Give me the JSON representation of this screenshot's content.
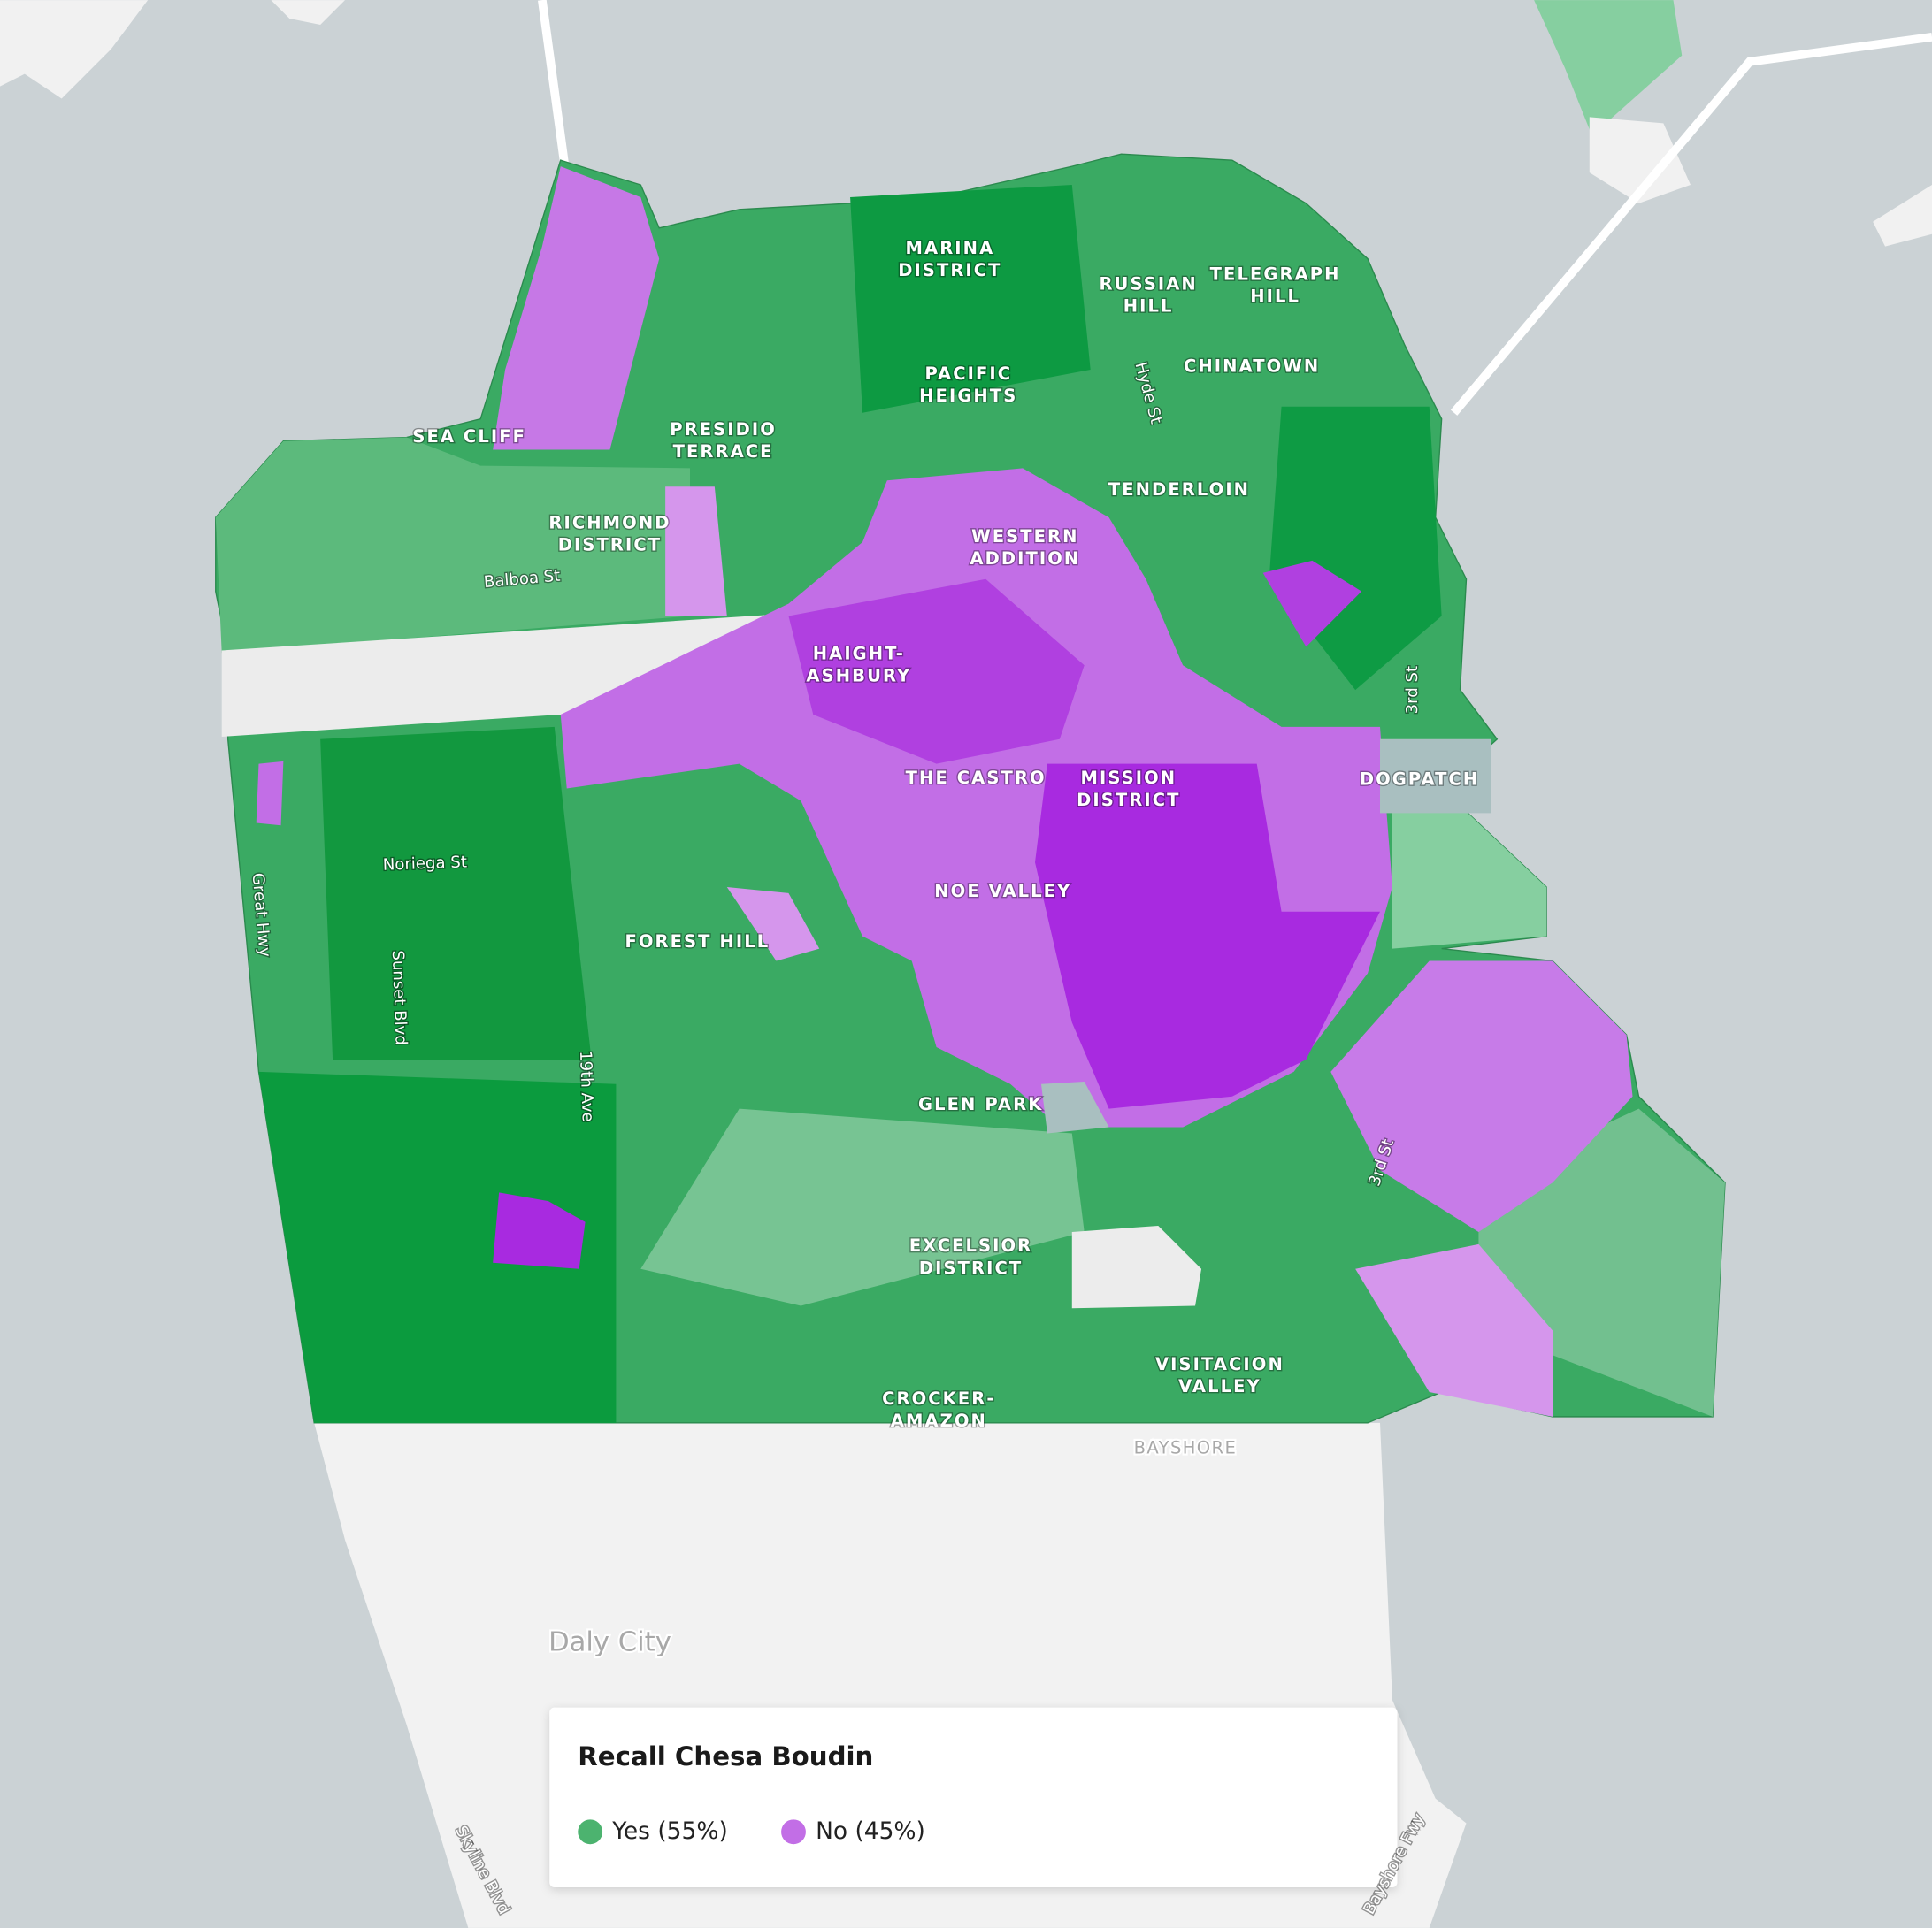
{
  "legend": {
    "title": "Recall Chesa Boudin",
    "items": [
      {
        "label": "Yes (55%)",
        "color": "#4cb36f"
      },
      {
        "label": "No (45%)",
        "color": "#c26ee6"
      }
    ]
  },
  "neighborhoods": [
    [
      "MARINA",
      "DISTRICT"
    ],
    [
      "RUSSIAN",
      "HILL"
    ],
    [
      "TELEGRAPH",
      "HILL"
    ],
    [
      "CHINATOWN"
    ],
    [
      "PACIFIC",
      "HEIGHTS"
    ],
    [
      "SEA CLIFF"
    ],
    [
      "PRESIDIO",
      "TERRACE"
    ],
    [
      "RICHMOND",
      "DISTRICT"
    ],
    [
      "TENDERLOIN"
    ],
    [
      "WESTERN",
      "ADDITION"
    ],
    [
      "HAIGHT-",
      "ASHBURY"
    ],
    [
      "THE CASTRO"
    ],
    [
      "MISSION",
      "DISTRICT"
    ],
    [
      "DOGPATCH"
    ],
    [
      "NOE VALLEY"
    ],
    [
      "FOREST HILL"
    ],
    [
      "GLEN PARK"
    ],
    [
      "EXCELSIOR",
      "DISTRICT"
    ],
    [
      "VISITACION",
      "VALLEY"
    ],
    [
      "CROCKER-",
      "AMAZON"
    ]
  ],
  "streets": [
    "Balboa St",
    "Noriega St",
    "Great Hwy",
    "Sunset Blvd",
    "19th Ave",
    "Hyde St",
    "3rd St",
    "3rd St",
    "Skyline Blvd",
    "Bayshore Fwy"
  ],
  "places": [
    "Daly City",
    "BAYSHORE"
  ]
}
